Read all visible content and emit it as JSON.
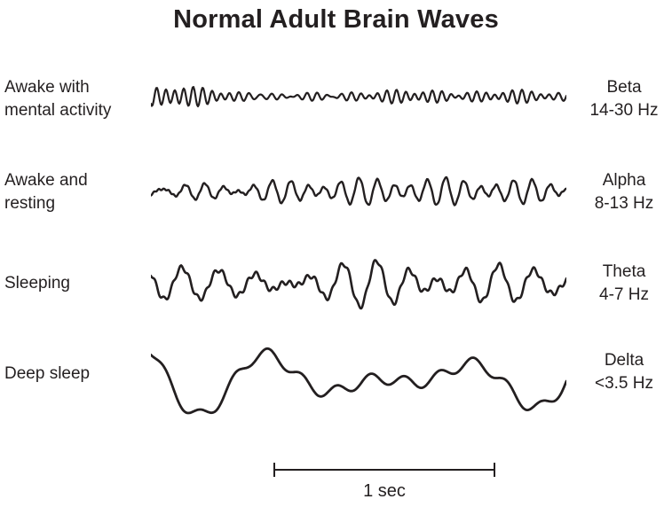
{
  "title": "Normal Adult Brain Waves",
  "colors": {
    "ink": "#231f20",
    "background": "#ffffff"
  },
  "scale_bar": {
    "label": "1 sec"
  },
  "rows": [
    {
      "id": "beta",
      "state_lines": [
        "Awake with",
        "mental activity"
      ],
      "band": "Beta",
      "freq": "14-30 Hz",
      "wave": {
        "seed": 11,
        "cycles": 45,
        "components": 5,
        "spread": 0.45,
        "amp": 11,
        "ripple": 0,
        "stroke": 2.2
      }
    },
    {
      "id": "alpha",
      "state_lines": [
        "Awake and",
        "resting"
      ],
      "band": "Alpha",
      "freq": "8-13 Hz",
      "wave": {
        "seed": 5,
        "cycles": 22,
        "components": 4,
        "spread": 0.5,
        "amp": 16,
        "ripple": 0.1,
        "stroke": 2.4
      }
    },
    {
      "id": "theta",
      "state_lines": [
        "Sleeping"
      ],
      "band": "Theta",
      "freq": "4-7 Hz",
      "wave": {
        "seed": 3,
        "cycles": 13,
        "components": 4,
        "spread": 0.45,
        "amp": 28,
        "ripple": 0.15,
        "stroke": 2.6
      }
    },
    {
      "id": "delta",
      "state_lines": [
        "Deep sleep"
      ],
      "band": "Delta",
      "freq": "<3.5 Hz",
      "wave": {
        "seed": 8,
        "cycles": 3.2,
        "components": 2,
        "spread": 0.35,
        "amp": 38,
        "ripple": 0.12,
        "stroke": 2.8
      }
    }
  ]
}
